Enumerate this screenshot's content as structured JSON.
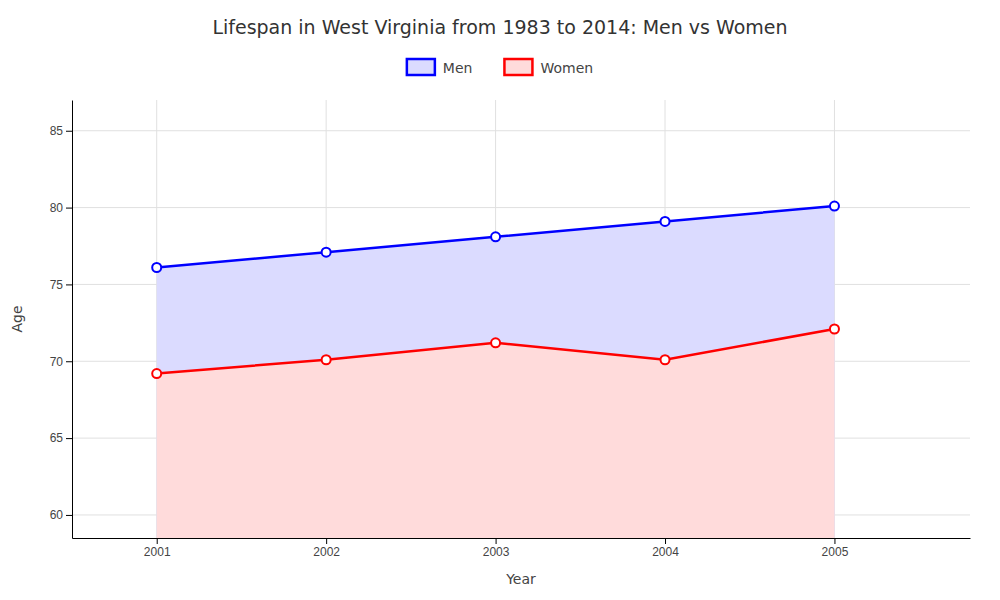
{
  "chart_data": {
    "type": "area",
    "title": "Lifespan in West Virginia from 1983 to 2014: Men vs Women",
    "x_label": "Year",
    "y_label": "Age",
    "x": [
      2001,
      2002,
      2003,
      2004,
      2005
    ],
    "series": [
      {
        "name": "Men",
        "color": "#0000ff",
        "marker": "circle",
        "values": [
          76.1,
          77.1,
          78.1,
          79.1,
          80.1
        ]
      },
      {
        "name": "Women",
        "color": "#ff0000",
        "marker": "circle",
        "values": [
          69.2,
          70.1,
          71.2,
          70.1,
          72.1
        ]
      }
    ],
    "xlim": [
      2000.5,
      2005.8
    ],
    "xticks": [
      2001,
      2002,
      2003,
      2004,
      2005
    ],
    "ylim": [
      58.5,
      87
    ],
    "yticks": [
      60,
      65,
      70,
      75,
      80,
      85
    ],
    "grid": true,
    "legend": "top"
  }
}
